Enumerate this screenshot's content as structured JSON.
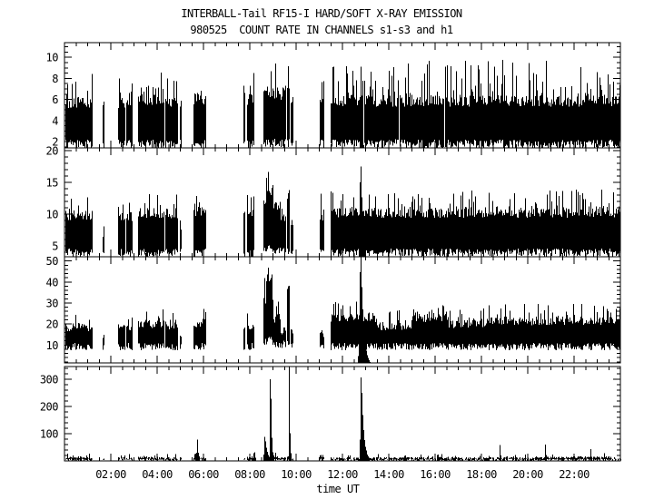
{
  "header": {
    "title": "INTERBALL-Tail RF15-I HARD/SOFT X-RAY EMISSION",
    "subtitle": "980525  COUNT RATE IN CHANNELS s1-s3 and h1"
  },
  "chart_data": {
    "type": "line",
    "title": "INTERBALL-Tail RF15-I HARD/SOFT X-RAY EMISSION",
    "subtitle": "980525  COUNT RATE IN CHANNELS s1-s3 and h1",
    "date": "980525",
    "xlabel": "time UT",
    "xlim": [
      0,
      24
    ],
    "x_major_tick_hours": [
      2,
      4,
      6,
      8,
      10,
      12,
      14,
      16,
      18,
      20,
      22
    ],
    "x_tick_labels": [
      "02:00",
      "04:00",
      "06:00",
      "08:00",
      "10:00",
      "12:00",
      "14:00",
      "16:00",
      "18:00",
      "20:00",
      "22:00"
    ],
    "x_minor_step_hours": 0.5,
    "background_color": "#ffffff",
    "line_color": "#000000",
    "grid": false,
    "legend": false,
    "panels": [
      {
        "channel": "s1",
        "ylim": [
          1.4,
          11.4
        ],
        "yticks": [
          2,
          4,
          6,
          8,
          10
        ],
        "y_minor_step": 0.5,
        "base_jitter": 0.9,
        "top_jitter": 1.1,
        "spike_prob": 0.25,
        "segments": [
          [
            0.05,
            1.22,
            2.2,
            6.3,
            8.8
          ],
          [
            1.64,
            1.68,
            2.2,
            6.5,
            6.6
          ],
          [
            2.3,
            2.58,
            2.2,
            6.2,
            8.2
          ],
          [
            2.66,
            2.9,
            2.2,
            6.3,
            8.2
          ],
          [
            3.16,
            4.28,
            2.2,
            6.5,
            8.6
          ],
          [
            4.36,
            4.9,
            2.2,
            6.4,
            8.4
          ],
          [
            4.98,
            5.02,
            2.2,
            6.0,
            6.2
          ],
          [
            5.58,
            6.12,
            2.2,
            6.6,
            9.4
          ],
          [
            7.72,
            7.78,
            2.2,
            6.4,
            8.0
          ],
          [
            7.9,
            8.18,
            2.2,
            6.5,
            8.6
          ],
          [
            8.58,
            9.3,
            2.3,
            7.2,
            11.2
          ],
          [
            9.34,
            9.55,
            2.3,
            6.8,
            8.6
          ],
          [
            9.62,
            9.72,
            2.3,
            7.2,
            10.9
          ],
          [
            9.76,
            9.86,
            2.2,
            6.4,
            7.4
          ],
          [
            11.02,
            11.2,
            2.2,
            6.8,
            8.8
          ],
          [
            11.5,
            24.0,
            2.2,
            6.4,
            9.8
          ]
        ],
        "events": [
          [
            12.78,
            9.8,
            0.03,
            0.06
          ]
        ],
        "dropouts": [
          [
            12.9,
            12.94
          ],
          [
            14.44,
            14.46
          ],
          [
            16.4,
            16.42
          ],
          [
            20.52,
            20.54
          ]
        ]
      },
      {
        "channel": "s2",
        "ylim": [
          3.3,
          20.4
        ],
        "yticks": [
          5,
          10,
          15,
          20
        ],
        "y_minor_step": 1,
        "base_jitter": 1.3,
        "top_jitter": 1.6,
        "spike_prob": 0.25,
        "segments": [
          [
            0.05,
            1.22,
            4.6,
            10.6,
            12.8
          ],
          [
            1.64,
            1.68,
            4.6,
            8.0,
            8.2
          ],
          [
            2.3,
            2.58,
            4.6,
            10.4,
            12.4
          ],
          [
            2.66,
            2.9,
            4.6,
            10.4,
            12.4
          ],
          [
            3.16,
            4.28,
            4.6,
            11.0,
            13.2
          ],
          [
            4.36,
            4.9,
            4.6,
            10.8,
            13.4
          ],
          [
            4.98,
            5.02,
            4.6,
            9.0,
            9.2
          ],
          [
            5.58,
            6.12,
            4.6,
            11.2,
            13.6
          ],
          [
            7.72,
            7.78,
            4.6,
            10.6,
            12.6
          ],
          [
            7.9,
            8.18,
            4.6,
            11.0,
            13.6
          ],
          [
            8.58,
            8.75,
            5.0,
            12.0,
            16.0
          ],
          [
            8.75,
            9.0,
            5.2,
            14.5,
            18.8
          ],
          [
            9.0,
            9.3,
            5.0,
            12.0,
            15.0
          ],
          [
            9.34,
            9.55,
            4.8,
            10.4,
            13.0
          ],
          [
            9.62,
            9.72,
            5.0,
            14.0,
            20.2
          ],
          [
            9.76,
            9.86,
            4.6,
            9.4,
            11.0
          ],
          [
            11.02,
            11.2,
            4.8,
            10.6,
            13.4
          ],
          [
            11.5,
            24.0,
            4.6,
            11.0,
            14.0
          ]
        ],
        "events": [
          [
            12.78,
            18.5,
            0.05,
            0.12
          ]
        ],
        "dropouts": []
      },
      {
        "channel": "s3",
        "ylim": [
          1.5,
          52
        ],
        "yticks": [
          10,
          20,
          30,
          40,
          50
        ],
        "y_minor_step": 2,
        "base_jitter": 3.5,
        "top_jitter": 4.0,
        "spike_prob": 0.22,
        "segments": [
          [
            0.05,
            1.22,
            11,
            20.5,
            25
          ],
          [
            1.64,
            1.68,
            11,
            15.0,
            15.5
          ],
          [
            2.3,
            2.58,
            11,
            20.0,
            24
          ],
          [
            2.66,
            2.9,
            11,
            20.0,
            24
          ],
          [
            3.16,
            4.28,
            11,
            22.0,
            27
          ],
          [
            4.36,
            4.9,
            11,
            21.5,
            26.5
          ],
          [
            4.98,
            5.02,
            11,
            15.0,
            15.5
          ],
          [
            5.58,
            6.12,
            11,
            22.5,
            28
          ],
          [
            7.72,
            7.78,
            11,
            20.0,
            24
          ],
          [
            7.9,
            8.18,
            11,
            21.0,
            30
          ],
          [
            8.58,
            8.72,
            13,
            33.0,
            43
          ],
          [
            8.72,
            8.98,
            15,
            42.0,
            52
          ],
          [
            8.98,
            9.3,
            12,
            24.0,
            33
          ],
          [
            9.34,
            9.55,
            12,
            19.0,
            24
          ],
          [
            9.62,
            9.72,
            13,
            40.0,
            49
          ],
          [
            9.76,
            9.86,
            11,
            16.0,
            19
          ],
          [
            11.02,
            11.2,
            11,
            17.0,
            22
          ],
          [
            11.5,
            13.4,
            11,
            25.0,
            31
          ],
          [
            13.4,
            15.0,
            11,
            21.0,
            27
          ],
          [
            15.0,
            16.6,
            11,
            25.0,
            31
          ],
          [
            16.6,
            18.2,
            11,
            22.0,
            28
          ],
          [
            18.2,
            24.0,
            11,
            23.5,
            30
          ]
        ],
        "events": [
          [
            12.78,
            55,
            0.05,
            0.12
          ]
        ],
        "dropouts": []
      },
      {
        "channel": "h1",
        "ylim": [
          0,
          347
        ],
        "yticks": [
          100,
          200,
          300
        ],
        "y_minor_step": 20,
        "base_jitter": 8,
        "top_jitter": 9,
        "spike_prob": 0.12,
        "segments": [
          [
            0.05,
            1.22,
            8,
            16,
            28
          ],
          [
            1.64,
            1.68,
            8,
            12,
            14
          ],
          [
            2.3,
            2.58,
            8,
            15,
            26
          ],
          [
            2.66,
            2.9,
            8,
            15,
            26
          ],
          [
            3.16,
            4.28,
            8,
            16,
            28
          ],
          [
            4.36,
            4.9,
            8,
            15,
            27
          ],
          [
            4.98,
            5.02,
            8,
            12,
            14
          ],
          [
            5.58,
            6.12,
            8,
            16,
            30
          ],
          [
            7.72,
            7.78,
            8,
            14,
            24
          ],
          [
            7.9,
            8.18,
            8,
            16,
            30
          ],
          [
            8.58,
            9.3,
            8,
            18,
            32
          ],
          [
            9.34,
            9.55,
            8,
            15,
            26
          ],
          [
            9.62,
            9.72,
            8,
            16,
            28
          ],
          [
            9.76,
            9.86,
            8,
            14,
            24
          ],
          [
            11.02,
            11.2,
            8,
            15,
            26
          ],
          [
            11.5,
            20.8,
            8,
            14,
            26
          ],
          [
            20.8,
            23.6,
            8,
            17,
            32
          ],
          [
            23.6,
            24.0,
            8,
            14,
            24
          ]
        ],
        "events": [
          [
            5.72,
            85,
            0.025,
            0.04
          ],
          [
            8.16,
            50,
            0.02,
            0.04
          ],
          [
            8.62,
            95,
            0.03,
            0.1
          ],
          [
            8.88,
            420,
            0.018,
            0.04
          ],
          [
            9.67,
            420,
            0.012,
            0.03
          ],
          [
            12.78,
            330,
            0.03,
            0.1
          ],
          [
            13.02,
            55,
            0.02,
            0.05
          ],
          [
            14.7,
            32,
            0.02,
            0.04
          ],
          [
            16.1,
            36,
            0.02,
            0.04
          ],
          [
            18.8,
            62,
            0.015,
            0.03
          ],
          [
            20.75,
            64,
            0.015,
            0.03
          ],
          [
            22.7,
            46,
            0.015,
            0.03
          ]
        ],
        "dropouts": []
      }
    ]
  }
}
